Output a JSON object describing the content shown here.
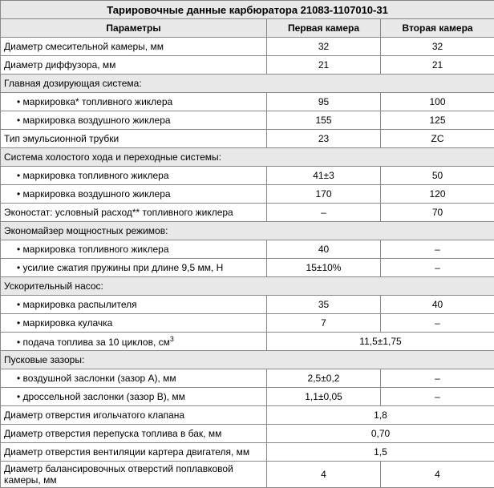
{
  "title": "Тарировочные данные карбюратора 21083-1107010-31",
  "headers": {
    "param": "Параметры",
    "c1": "Первая камера",
    "c2": "Вторая камера"
  },
  "rows": {
    "mix_dia": {
      "label": "Диаметр смесительной камеры, мм",
      "v1": "32",
      "v2": "32"
    },
    "diff_dia": {
      "label": "Диаметр диффузора, мм",
      "v1": "21",
      "v2": "21"
    },
    "main_sys": {
      "label": "Главная дозирующая система:"
    },
    "main_fuel": {
      "label": "• маркировка* топливного жиклера",
      "v1": "95",
      "v2": "100"
    },
    "main_air": {
      "label": "• маркировка воздушного жиклера",
      "v1": "155",
      "v2": "125"
    },
    "emul": {
      "label": "Тип эмульсионной трубки",
      "v1": "23",
      "v2": "ZC"
    },
    "idle_sys": {
      "label": "Система холостого хода и переходные системы:"
    },
    "idle_fuel": {
      "label": "• маркировка топливного жиклера",
      "v1": "41±3",
      "v2": "50"
    },
    "idle_air": {
      "label": "• маркировка воздушного жиклера",
      "v1": "170",
      "v2": "120"
    },
    "econostat": {
      "label": "Эконостат: условный расход** топливного жиклера",
      "v1": "–",
      "v2": "70"
    },
    "economizer": {
      "label": "Экономайзер мощностных режимов:"
    },
    "eco_fuel": {
      "label": "• маркировка топливного жиклера",
      "v1": "40",
      "v2": "–"
    },
    "eco_spring": {
      "label": "• усилие сжатия пружины при длине 9,5 мм, Н",
      "v1": "15±10%",
      "v2": "–"
    },
    "accel": {
      "label": "Ускорительный насос:"
    },
    "acc_spray": {
      "label": "• маркировка распылителя",
      "v1": "35",
      "v2": "40"
    },
    "acc_cam": {
      "label": "• маркировка кулачка",
      "v1": "7",
      "v2": "–"
    },
    "acc_feed": {
      "label": "• подача топлива за 10 циклов, см",
      "sup": "3",
      "vmerged": "11,5±1,75"
    },
    "start_gap": {
      "label": "Пусковые зазоры:"
    },
    "gap_a": {
      "label": "• воздушной заслонки (зазор А), мм",
      "v1": "2,5±0,2",
      "v2": "–"
    },
    "gap_b": {
      "label": "• дроссельной заслонки (зазор В), мм",
      "v1": "1,1±0,05",
      "v2": "–"
    },
    "needle": {
      "label": "Диаметр отверстия игольчатого клапана",
      "vmerged": "1,8"
    },
    "bypass": {
      "label": "Диаметр отверстия перепуска топлива в бак, мм",
      "vmerged": "0,70"
    },
    "vent": {
      "label": "Диаметр отверстия вентиляции картера двигателя, мм",
      "vmerged": "1,5"
    },
    "balance": {
      "label": "Диаметр балансировочных отверстий поплавковой камеры, мм",
      "v1": "4",
      "v2": "4"
    }
  }
}
